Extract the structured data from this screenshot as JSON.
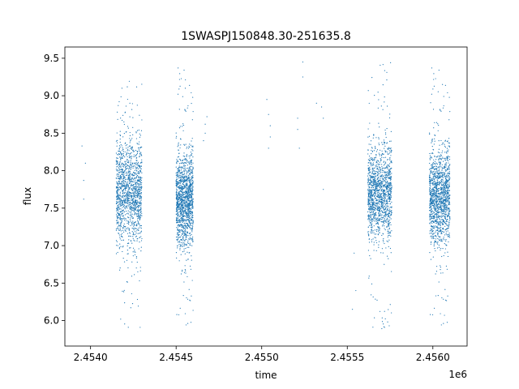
{
  "chart_data": {
    "type": "scatter",
    "title": "1SWASPJ150848.30-251635.8",
    "xlabel": "time",
    "ylabel": "flux",
    "x_offset_label": "1e6",
    "xlim": [
      2.45385,
      2.4562
    ],
    "ylim": [
      5.66,
      9.65
    ],
    "x_ticks": [
      2.454,
      2.4545,
      2.455,
      2.4555,
      2.456
    ],
    "x_tick_labels": [
      "2.4540",
      "2.4545",
      "2.4550",
      "2.4555",
      "2.4560"
    ],
    "y_ticks": [
      6.0,
      6.5,
      7.0,
      7.5,
      8.0,
      8.5,
      9.0,
      9.5
    ],
    "y_tick_labels": [
      "6.0",
      "6.5",
      "7.0",
      "7.5",
      "8.0",
      "8.5",
      "9.0",
      "9.5"
    ],
    "grid": false,
    "marker_color": "#1f77b4",
    "series": [
      {
        "clusters": [
          {
            "x_range": [
              2.45415,
              2.4543
            ],
            "y_center": 7.7,
            "y_spread": 0.35,
            "y_range": [
              5.9,
              9.2
            ],
            "density": "high"
          },
          {
            "x_range": [
              2.4545,
              2.4546
            ],
            "y_center": 7.6,
            "y_spread": 0.3,
            "y_range": [
              5.9,
              9.45
            ],
            "density": "high"
          },
          {
            "x_range": [
              2.45562,
              2.45576
            ],
            "y_center": 7.7,
            "y_spread": 0.3,
            "y_range": [
              5.85,
              9.45
            ],
            "density": "high"
          },
          {
            "x_range": [
              2.45598,
              2.4561
            ],
            "y_center": 7.65,
            "y_spread": 0.3,
            "y_range": [
              5.9,
              9.45
            ],
            "density": "high"
          }
        ],
        "sparse_points": [
          [
            2.45395,
            8.33
          ],
          [
            2.45396,
            7.87
          ],
          [
            2.45396,
            7.62
          ],
          [
            2.45397,
            8.1
          ],
          [
            2.45467,
            8.62
          ],
          [
            2.45467,
            8.5
          ],
          [
            2.45468,
            8.72
          ],
          [
            2.45466,
            8.4
          ],
          [
            2.45503,
            8.95
          ],
          [
            2.45504,
            8.75
          ],
          [
            2.45505,
            8.6
          ],
          [
            2.45504,
            8.3
          ],
          [
            2.45505,
            8.45
          ],
          [
            2.45521,
            8.7
          ],
          [
            2.45521,
            8.55
          ],
          [
            2.45522,
            8.3
          ],
          [
            2.45524,
            9.45
          ],
          [
            2.45524,
            9.25
          ],
          [
            2.45532,
            8.9
          ],
          [
            2.45535,
            8.85
          ],
          [
            2.45536,
            8.7
          ],
          [
            2.45536,
            7.75
          ],
          [
            2.45554,
            6.9
          ],
          [
            2.45555,
            6.4
          ],
          [
            2.45553,
            6.15
          ]
        ]
      }
    ]
  }
}
